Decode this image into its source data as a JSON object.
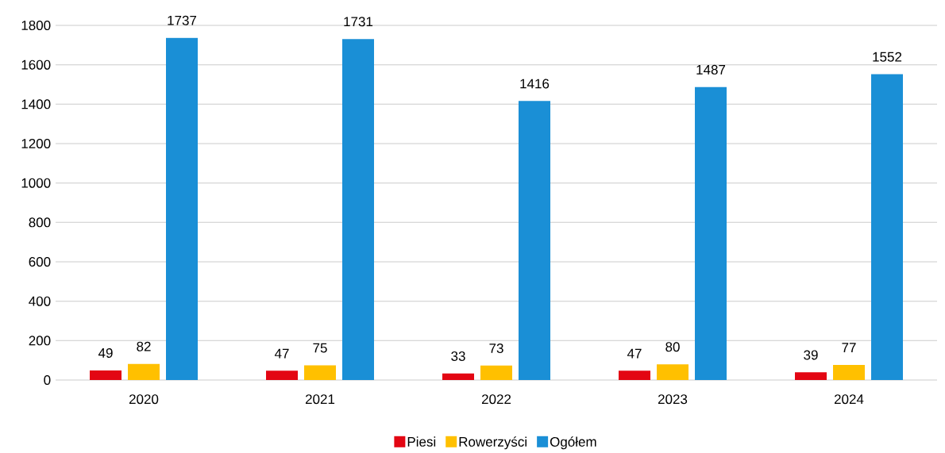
{
  "chart_data": {
    "type": "bar",
    "categories": [
      "2020",
      "2021",
      "2022",
      "2023",
      "2024"
    ],
    "series": [
      {
        "name": "Piesi",
        "color": "#e30613",
        "values": [
          49,
          47,
          33,
          47,
          39
        ]
      },
      {
        "name": "Rowerzyści",
        "color": "#ffc000",
        "values": [
          82,
          75,
          73,
          80,
          77
        ]
      },
      {
        "name": "Ogółem",
        "color": "#1a8fd6",
        "values": [
          1737,
          1731,
          1416,
          1487,
          1552
        ]
      }
    ],
    "ylim": [
      0,
      1800
    ],
    "yticks": [
      0,
      200,
      400,
      600,
      800,
      1000,
      1200,
      1400,
      1600,
      1800
    ],
    "grid": "y",
    "legend": "bottom",
    "data_labels": true
  }
}
